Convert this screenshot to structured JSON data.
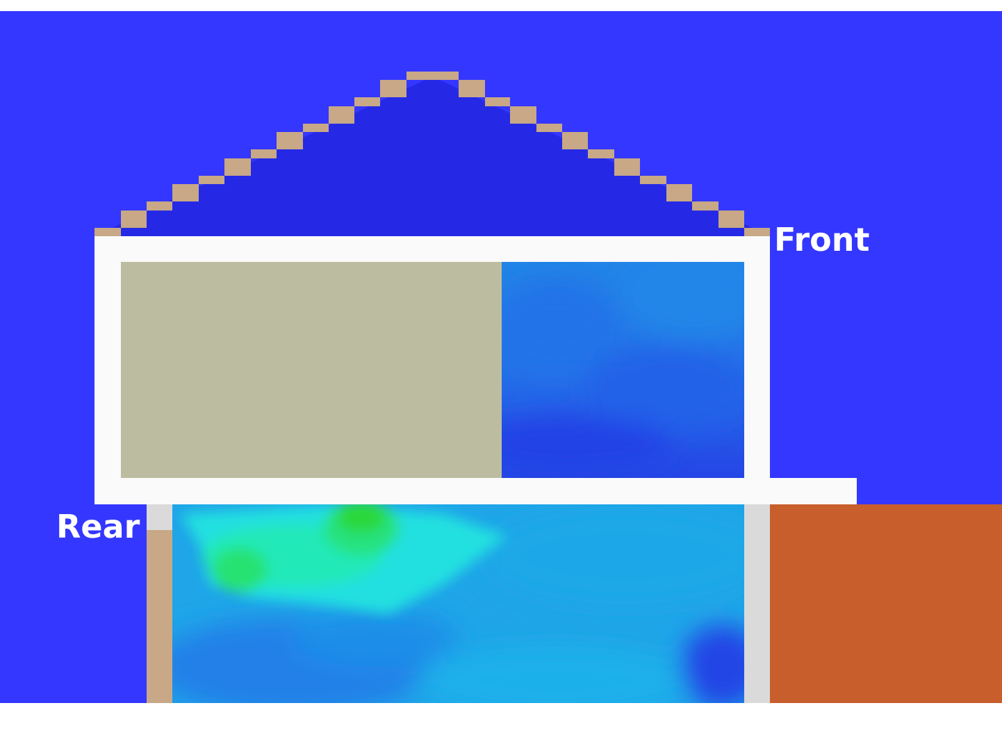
{
  "labels": {
    "front": "Front",
    "rear": "Rear"
  },
  "colors": {
    "sky": "#3437FF",
    "attic": "#2529E6",
    "roof_tile": "#C8A886",
    "wall_white": "#FAFAFA",
    "wall_grey": "#DADADA",
    "upper_left_room": "#BCBDA0",
    "neighbor_block": "#C75E2C",
    "rear_post": "#C8A886"
  },
  "icons": {
    "roof": "stepped-roof-icon"
  }
}
